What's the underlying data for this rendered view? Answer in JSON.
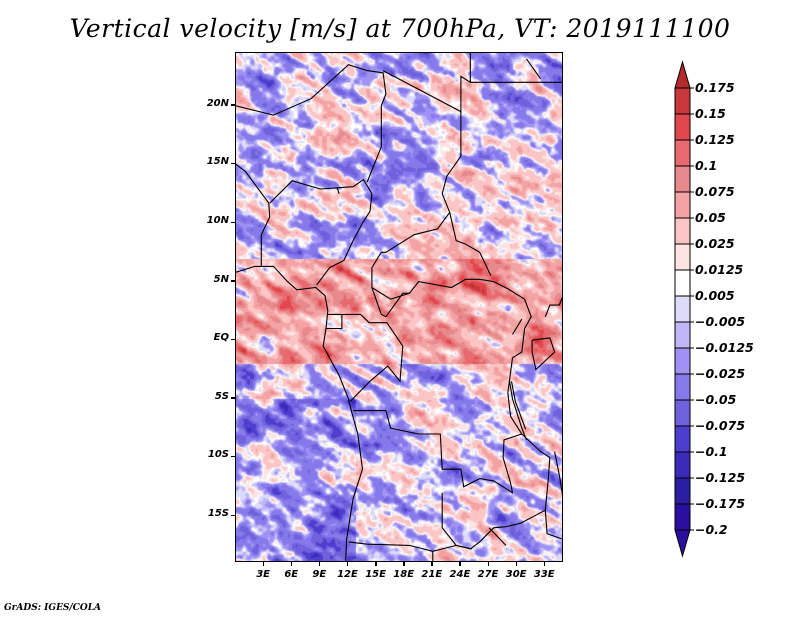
{
  "title": "Vertical velocity [m/s] at 700hPa, VT: 2019111100",
  "footer": "GrADS: IGES/COLA",
  "map": {
    "variable": "Vertical velocity",
    "units": "m/s",
    "level": "700hPa",
    "valid_time": "2019111100",
    "lon_range": [
      0,
      35
    ],
    "lat_range": [
      -19,
      24.5
    ],
    "lat_ticks": [
      {
        "value": 20,
        "label": "20N"
      },
      {
        "value": 15,
        "label": "15N"
      },
      {
        "value": 10,
        "label": "10N"
      },
      {
        "value": 5,
        "label": "5N"
      },
      {
        "value": 0,
        "label": "EQ"
      },
      {
        "value": -5,
        "label": "5S"
      },
      {
        "value": -10,
        "label": "10S"
      },
      {
        "value": -15,
        "label": "15S"
      }
    ],
    "lon_ticks": [
      {
        "value": 3,
        "label": "3E"
      },
      {
        "value": 6,
        "label": "6E"
      },
      {
        "value": 9,
        "label": "9E"
      },
      {
        "value": 12,
        "label": "12E"
      },
      {
        "value": 15,
        "label": "15E"
      },
      {
        "value": 18,
        "label": "18E"
      },
      {
        "value": 21,
        "label": "21E"
      },
      {
        "value": 24,
        "label": "24E"
      },
      {
        "value": 27,
        "label": "27E"
      },
      {
        "value": 30,
        "label": "30E"
      },
      {
        "value": 33,
        "label": "33E"
      }
    ]
  },
  "colorbar": {
    "labels": [
      "0.175",
      "0.15",
      "0.125",
      "0.1",
      "0.075",
      "0.05",
      "0.025",
      "0.0125",
      "0.005",
      "−0.005",
      "−0.0125",
      "−0.025",
      "−0.05",
      "−0.075",
      "−0.1",
      "−0.125",
      "−0.175",
      "−0.2"
    ],
    "levels": [
      0.175,
      0.15,
      0.125,
      0.1,
      0.075,
      0.05,
      0.025,
      0.0125,
      0.005,
      -0.005,
      -0.0125,
      -0.025,
      -0.05,
      -0.075,
      -0.1,
      -0.125,
      -0.175,
      -0.2
    ],
    "colors": [
      "#b42a2e",
      "#c8383b",
      "#e2474d",
      "#e86a6e",
      "#e78a8d",
      "#f4a3a4",
      "#fbc5c5",
      "#fde4e4",
      "#ffffff",
      "#dcdcfa",
      "#c0b7f7",
      "#9f92f4",
      "#8679ea",
      "#6f62dc",
      "#4e3ecf",
      "#3c2bbb",
      "#2c1ea2",
      "#2a0ea0"
    ],
    "extend_colors": {
      "top": "#b42a2e",
      "bottom": "#2a0ea0"
    }
  }
}
